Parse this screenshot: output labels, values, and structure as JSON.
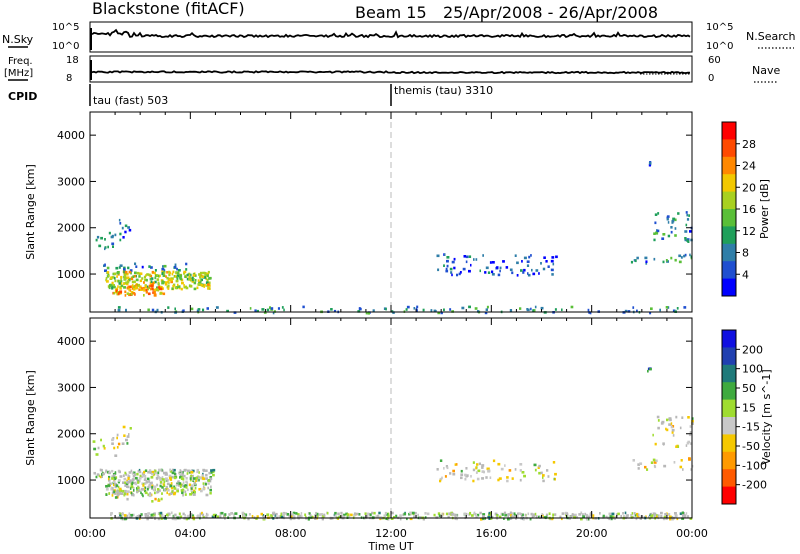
{
  "header": {
    "station": "Blackstone (fitACF)",
    "beam": "Beam 15",
    "dates": "25/Apr/2008 - 26/Apr/2008"
  },
  "panels": {
    "noise": {
      "left_label": "N.Sky",
      "right_label": "N.Search",
      "left_ticks": [
        "10^5",
        "10^0"
      ],
      "right_ticks": [
        "10^5",
        "10^0"
      ]
    },
    "freq": {
      "left_label_1": "Freq.",
      "left_label_2": "[MHz]",
      "right_label": "Nave",
      "left_ticks": [
        "18",
        "8"
      ],
      "right_ticks": [
        "60",
        "0"
      ]
    },
    "cpid": {
      "label": "CPID",
      "segments": [
        {
          "name": "tau (fast) 503",
          "start_hour": 0
        },
        {
          "name": "themis (tau) 3310",
          "start_hour": 12
        }
      ]
    }
  },
  "colors": {
    "power": [
      "#0000ff",
      "#1f4fd0",
      "#2f7ea8",
      "#1f9f5a",
      "#5abf38",
      "#a8d020",
      "#f2c800",
      "#ff8800",
      "#ff4a00",
      "#ff0000"
    ],
    "velocity": [
      "#ff0000",
      "#ff5a00",
      "#ff9a00",
      "#f5c800",
      "#c8c8c8",
      "#9fdc30",
      "#3faa3f",
      "#1f7a7a",
      "#2040b0",
      "#1010e0"
    ],
    "ground_scatter": "#b8b8b8",
    "noise_line": "#000000"
  },
  "chart_data": [
    {
      "type": "heatmap",
      "name": "power",
      "title": "",
      "xlabel": "Time UT",
      "ylabel": "Slant Range [km]",
      "xlim": [
        0,
        24
      ],
      "ylim": [
        180,
        4500
      ],
      "x_ticks": [
        "00:00",
        "04:00",
        "08:00",
        "12:00",
        "16:00",
        "20:00",
        "00:00"
      ],
      "y_ticks": [
        1000,
        2000,
        3000,
        4000
      ],
      "colorbar": {
        "label": "Power [dB]",
        "range": [
          0,
          32
        ],
        "ticks": [
          4,
          8,
          12,
          16,
          20,
          24,
          28
        ]
      },
      "regions": [
        {
          "t": [
            0.1,
            1.2
          ],
          "r": [
            1550,
            1950
          ],
          "level": 0.25
        },
        {
          "t": [
            1.0,
            1.6
          ],
          "r": [
            1800,
            2250
          ],
          "level": 0.2
        },
        {
          "t": [
            0.1,
            4.9
          ],
          "r": [
            1080,
            1250
          ],
          "level": 0.25
        },
        {
          "t": [
            0.6,
            4.8
          ],
          "r": [
            700,
            1080
          ],
          "level": 0.55
        },
        {
          "t": [
            0.8,
            2.9
          ],
          "r": [
            560,
            780
          ],
          "level": 0.7
        },
        {
          "t": [
            0.7,
            23.9
          ],
          "r": [
            180,
            320
          ],
          "level": 0.3
        },
        {
          "t": [
            13.8,
            18.6
          ],
          "r": [
            1000,
            1450
          ],
          "level": 0.15
        },
        {
          "t": [
            21.5,
            24.0
          ],
          "r": [
            1250,
            1500
          ],
          "level": 0.25
        },
        {
          "t": [
            22.4,
            24.0
          ],
          "r": [
            1700,
            2400
          ],
          "level": 0.25
        },
        {
          "t": [
            22.2,
            22.3
          ],
          "r": [
            3350,
            3450
          ],
          "level": 0.2
        }
      ]
    },
    {
      "type": "heatmap",
      "name": "velocity",
      "title": "",
      "xlabel": "Time UT",
      "ylabel": "Slant Range [km]",
      "xlim": [
        0,
        24
      ],
      "ylim": [
        180,
        4500
      ],
      "x_ticks": [
        "00:00",
        "04:00",
        "08:00",
        "12:00",
        "16:00",
        "20:00",
        "00:00"
      ],
      "y_ticks": [
        1000,
        2000,
        3000,
        4000
      ],
      "colorbar": {
        "label": "Velocity [m s^-1]",
        "ticks": [
          "200",
          "100",
          "50",
          "15",
          "-15",
          "-50",
          "-100",
          "-200"
        ]
      },
      "regions": [
        {
          "t": [
            0.1,
            1.2
          ],
          "r": [
            1550,
            1950
          ],
          "level": 0.45
        },
        {
          "t": [
            1.0,
            1.6
          ],
          "r": [
            1800,
            2250
          ],
          "level": 0.45
        },
        {
          "t": [
            0.1,
            4.9
          ],
          "r": [
            1080,
            1250
          ],
          "level": 0.55
        },
        {
          "t": [
            0.6,
            4.8
          ],
          "r": [
            700,
            1080
          ],
          "level": 0.5
        },
        {
          "t": [
            0.8,
            2.9
          ],
          "r": [
            560,
            780
          ],
          "level": 0.45
        },
        {
          "t": [
            0.7,
            23.9
          ],
          "r": [
            180,
            320
          ],
          "level": 0.55
        },
        {
          "t": [
            13.8,
            18.6
          ],
          "r": [
            1000,
            1450
          ],
          "level": 0.45
        },
        {
          "t": [
            21.5,
            24.0
          ],
          "r": [
            1250,
            1500
          ],
          "level": 0.45
        },
        {
          "t": [
            22.4,
            24.0
          ],
          "r": [
            1700,
            2400
          ],
          "level": 0.45
        },
        {
          "t": [
            22.2,
            22.3
          ],
          "r": [
            3350,
            3450
          ],
          "level": 0.8
        }
      ]
    }
  ]
}
